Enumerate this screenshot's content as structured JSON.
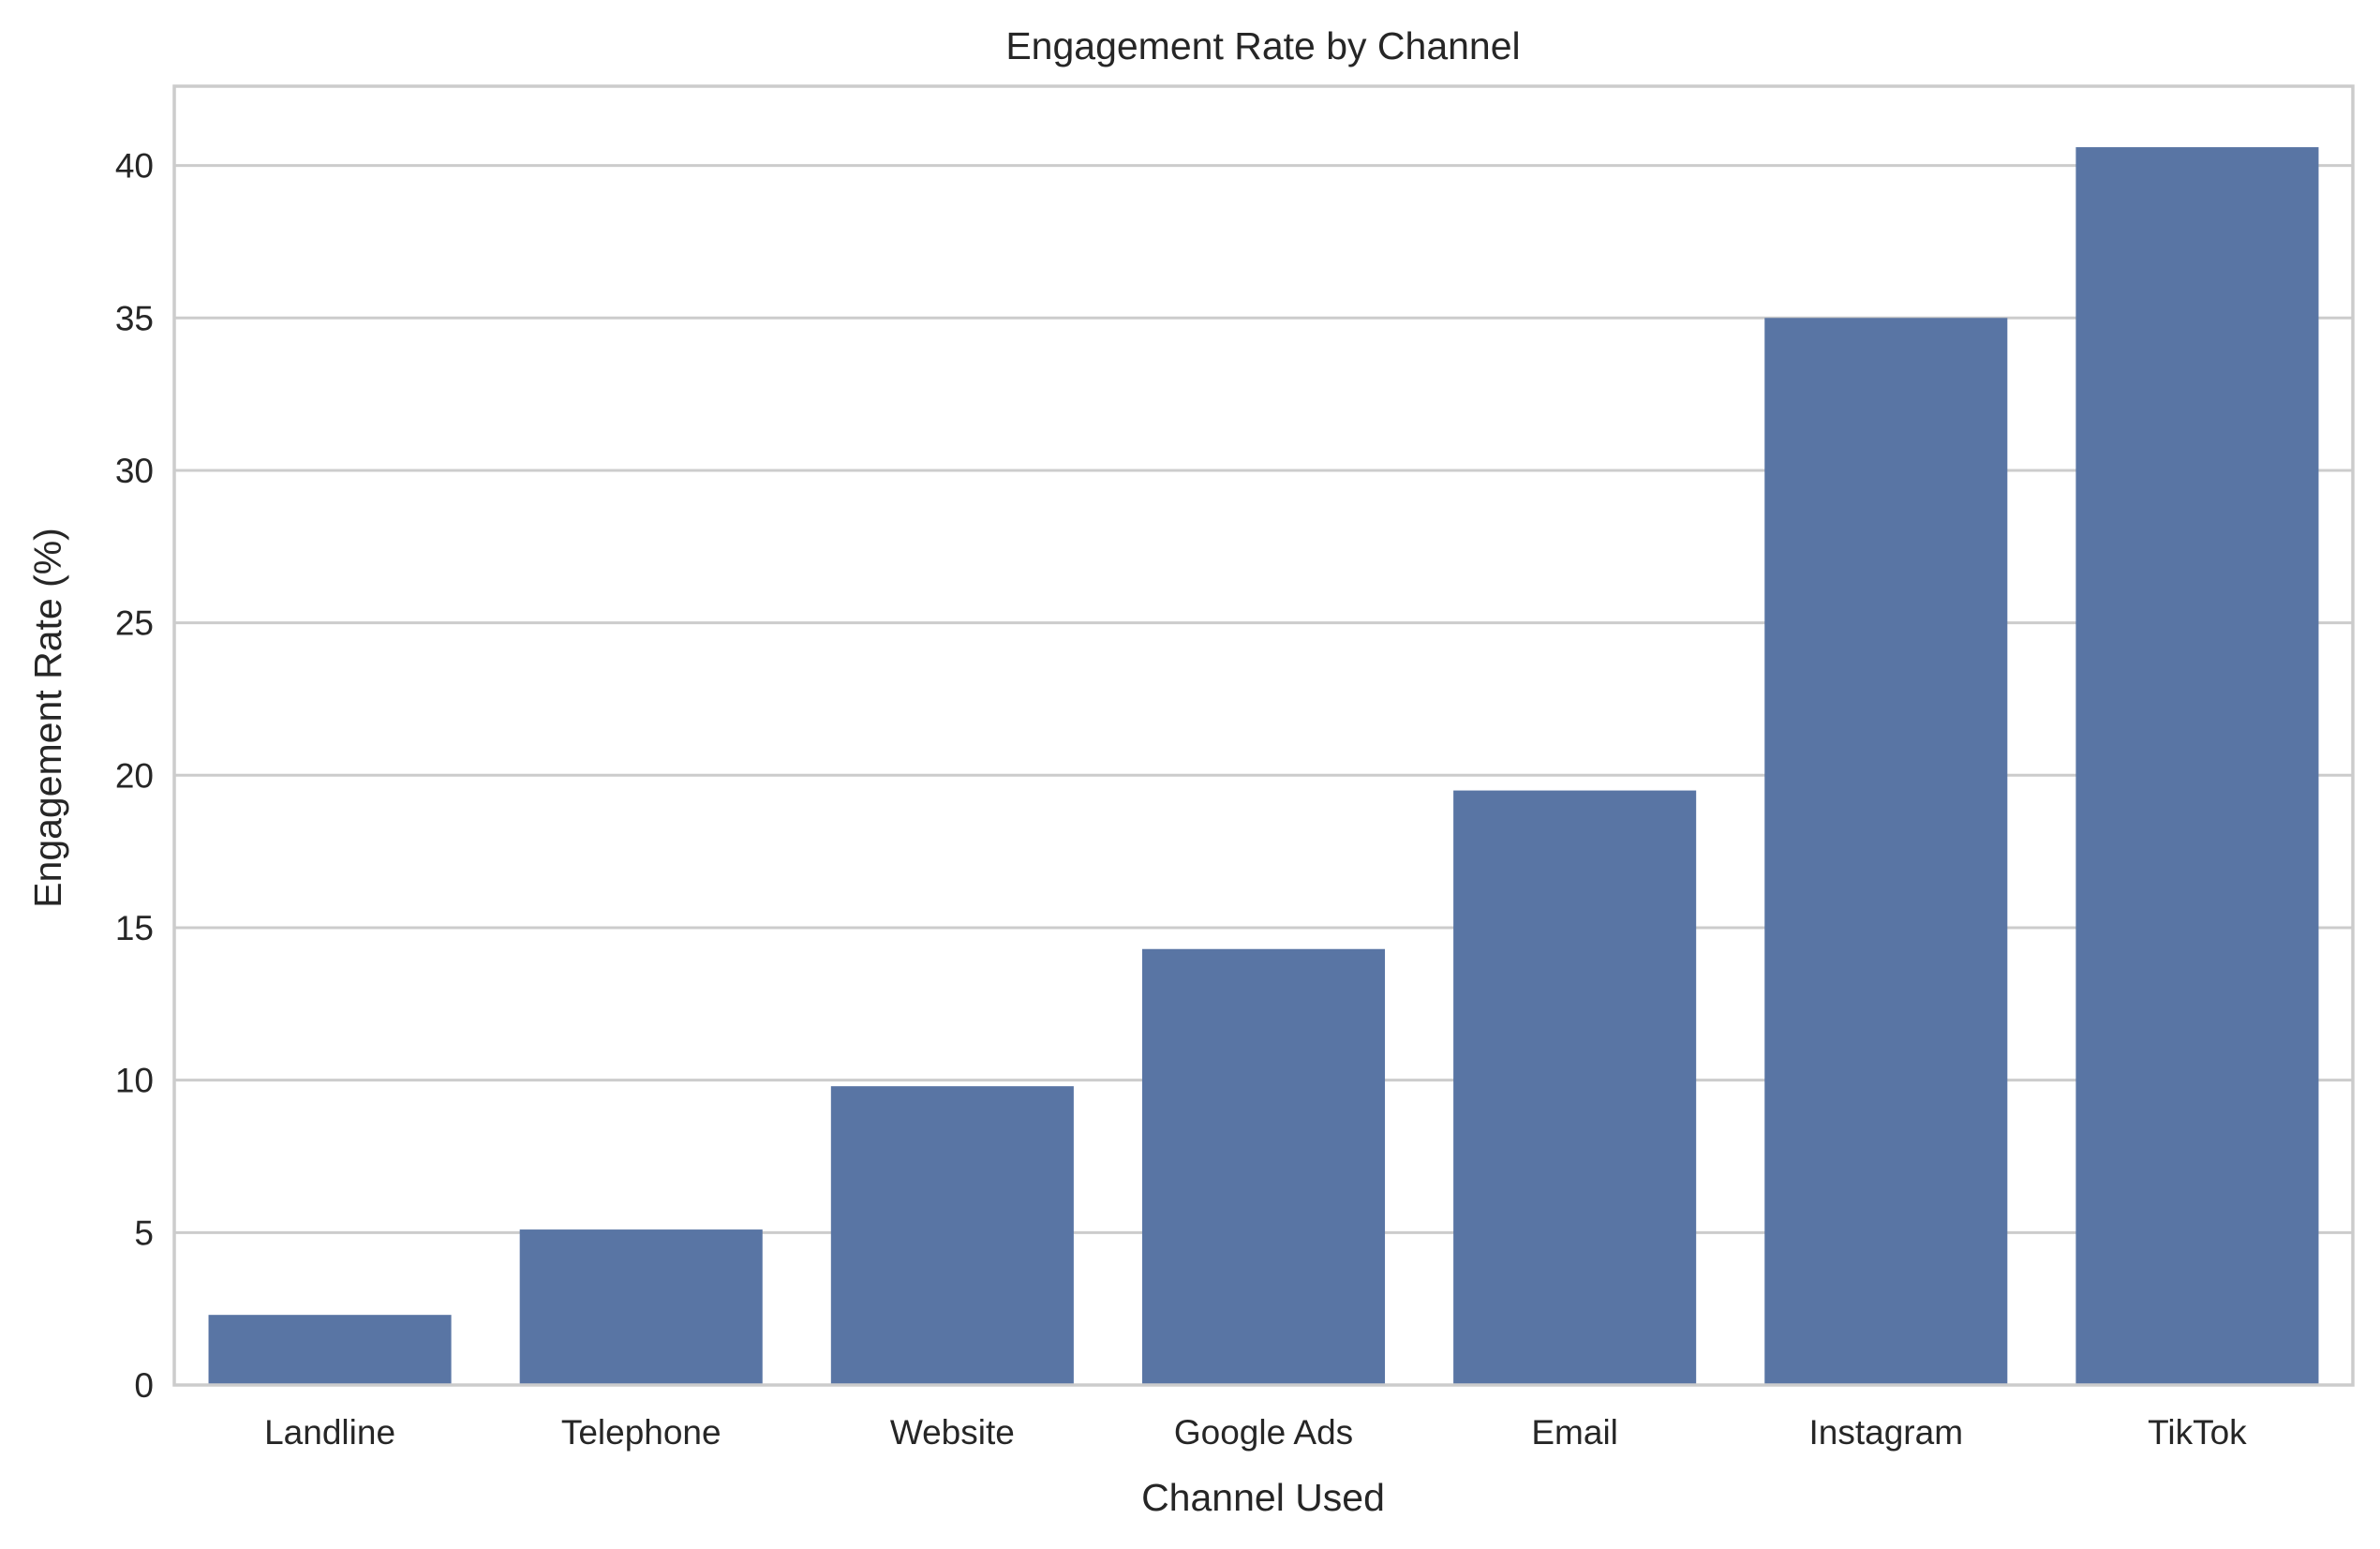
{
  "chart_data": {
    "type": "bar",
    "title": "Engagement Rate by Channel",
    "xlabel": "Channel Used",
    "ylabel": "Engagement Rate (%)",
    "categories": [
      "Landline",
      "Telephone",
      "Website",
      "Google Ads",
      "Email",
      "Instagram",
      "TikTok"
    ],
    "values": [
      2.3,
      5.1,
      9.8,
      14.3,
      19.5,
      35.0,
      40.6
    ],
    "ylim": [
      0,
      42.6
    ],
    "yticks": [
      0,
      5,
      10,
      15,
      20,
      25,
      30,
      35,
      40
    ],
    "grid": true,
    "bar_color": "#5975a4",
    "grid_color": "#cccccc"
  }
}
